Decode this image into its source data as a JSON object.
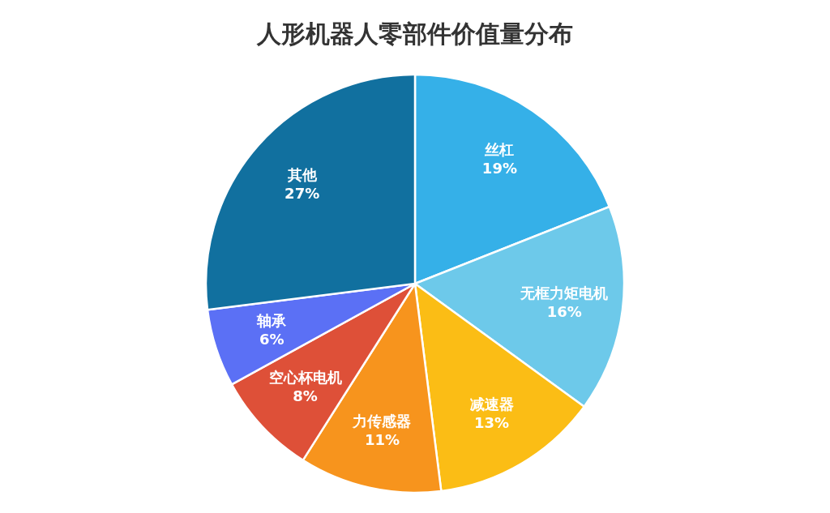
{
  "chart_data": {
    "type": "pie",
    "title": "人形机器人零部件价值量分布",
    "categories": [
      "丝杠",
      "无框力矩电机",
      "减速器",
      "力传感器",
      "空心杯电机",
      "轴承",
      "其他"
    ],
    "values": [
      19,
      16,
      13,
      11,
      8,
      6,
      27
    ],
    "colors": [
      "#35b0e8",
      "#6dc9ea",
      "#fbbd15",
      "#f7941d",
      "#de5038",
      "#5b70f5",
      "#11709f"
    ],
    "value_labels": [
      "19%",
      "16%",
      "13%",
      "11%",
      "8%",
      "6%",
      "27%"
    ]
  }
}
